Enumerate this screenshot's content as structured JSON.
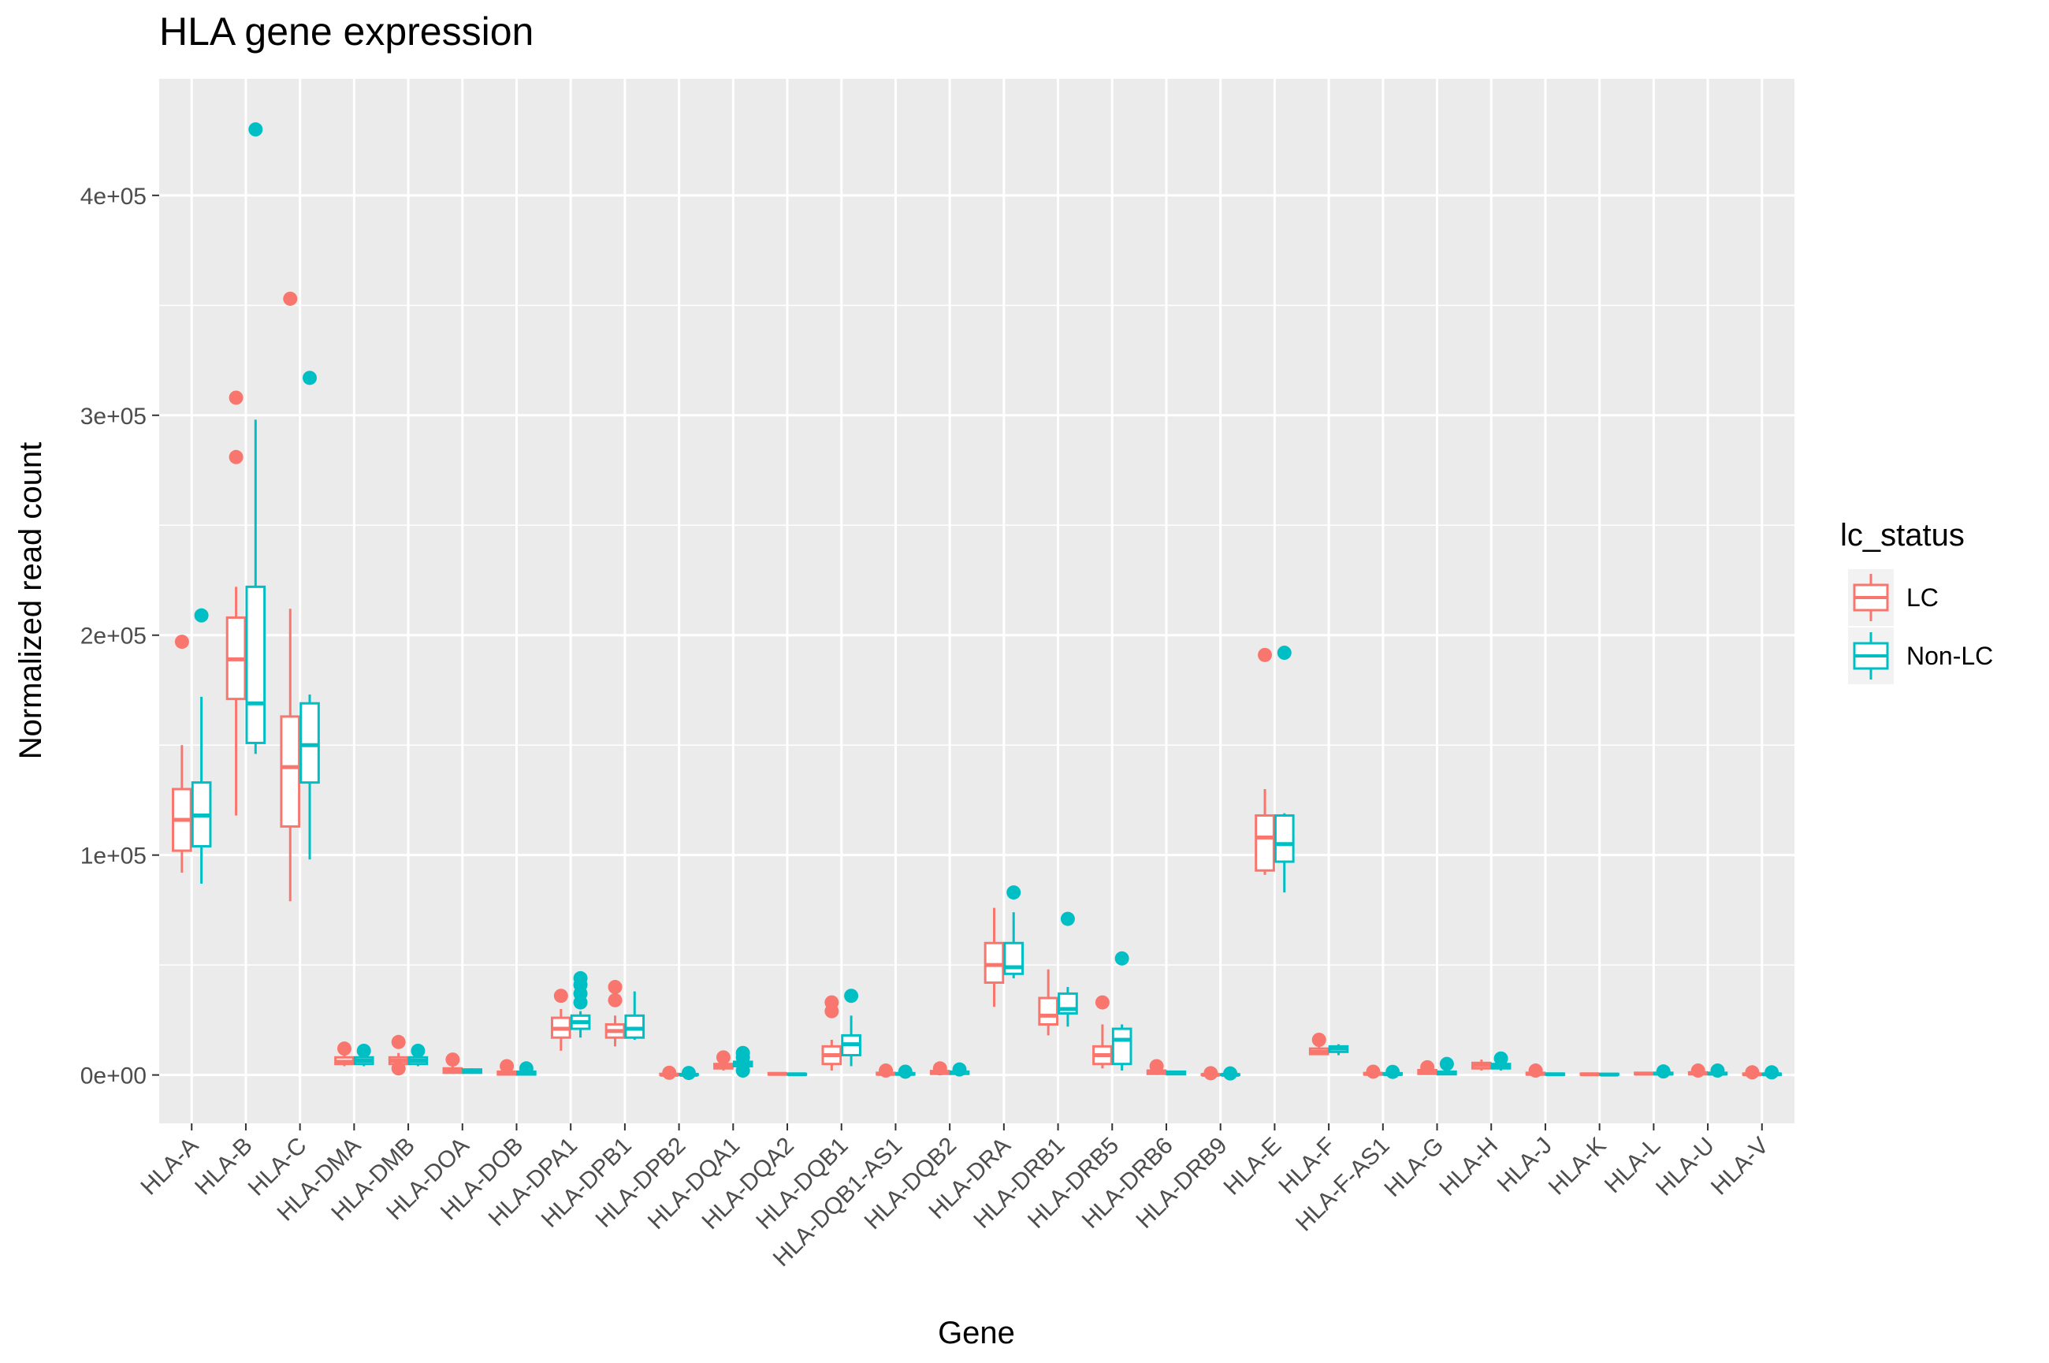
{
  "chart_data": {
    "type": "boxplot",
    "title": "HLA gene expression",
    "xlabel": "Gene",
    "ylabel": "Normalized read count",
    "ylim": [
      -22000,
      453000
    ],
    "y_ticks": [
      {
        "value": 0,
        "label": "0e+00"
      },
      {
        "value": 100000,
        "label": "1e+05"
      },
      {
        "value": 200000,
        "label": "2e+05"
      },
      {
        "value": 300000,
        "label": "3e+05"
      },
      {
        "value": 400000,
        "label": "4e+05"
      }
    ],
    "legend": {
      "title": "lc_status",
      "position": "right"
    },
    "series": [
      {
        "name": "LC",
        "color": "#F8766D"
      },
      {
        "name": "Non-LC",
        "color": "#00BFC4"
      }
    ],
    "grid": true,
    "categories": [
      "HLA-A",
      "HLA-B",
      "HLA-C",
      "HLA-DMA",
      "HLA-DMB",
      "HLA-DOA",
      "HLA-DOB",
      "HLA-DPA1",
      "HLA-DPB1",
      "HLA-DPB2",
      "HLA-DQA1",
      "HLA-DQA2",
      "HLA-DQB1",
      "HLA-DQB1-AS1",
      "HLA-DQB2",
      "HLA-DRA",
      "HLA-DRB1",
      "HLA-DRB5",
      "HLA-DRB6",
      "HLA-DRB9",
      "HLA-E",
      "HLA-F",
      "HLA-F-AS1",
      "HLA-G",
      "HLA-H",
      "HLA-J",
      "HLA-K",
      "HLA-L",
      "HLA-U",
      "HLA-V"
    ],
    "boxes": [
      {
        "gene": "HLA-A",
        "LC": {
          "min": 92000,
          "q1": 102000,
          "median": 116000,
          "q3": 130000,
          "max": 150000,
          "outliers": [
            197000
          ]
        },
        "Non-LC": {
          "min": 87000,
          "q1": 104000,
          "median": 118000,
          "q3": 133000,
          "max": 172000,
          "outliers": [
            209000
          ]
        }
      },
      {
        "gene": "HLA-B",
        "LC": {
          "min": 118000,
          "q1": 171000,
          "median": 189000,
          "q3": 208000,
          "max": 222000,
          "outliers": [
            281000,
            308000
          ]
        },
        "Non-LC": {
          "min": 146000,
          "q1": 151000,
          "median": 169000,
          "q3": 222000,
          "max": 298000,
          "outliers": [
            430000
          ]
        }
      },
      {
        "gene": "HLA-C",
        "LC": {
          "min": 79000,
          "q1": 113000,
          "median": 140000,
          "q3": 163000,
          "max": 212000,
          "outliers": [
            353000
          ]
        },
        "Non-LC": {
          "min": 98000,
          "q1": 133000,
          "median": 150000,
          "q3": 169000,
          "max": 173000,
          "outliers": [
            317000
          ]
        }
      },
      {
        "gene": "HLA-DMA",
        "LC": {
          "min": 4000,
          "q1": 5000,
          "median": 6000,
          "q3": 8000,
          "max": 9000,
          "outliers": [
            12000
          ]
        },
        "Non-LC": {
          "min": 4000,
          "q1": 5000,
          "median": 6500,
          "q3": 8000,
          "max": 9000,
          "outliers": [
            11000
          ]
        }
      },
      {
        "gene": "HLA-DMB",
        "LC": {
          "min": 4000,
          "q1": 5000,
          "median": 6500,
          "q3": 8000,
          "max": 10000,
          "outliers": [
            3000,
            15000
          ]
        },
        "Non-LC": {
          "min": 4000,
          "q1": 5000,
          "median": 6500,
          "q3": 8000,
          "max": 9000,
          "outliers": [
            11000
          ]
        }
      },
      {
        "gene": "HLA-DOA",
        "LC": {
          "min": 500,
          "q1": 1000,
          "median": 2000,
          "q3": 3000,
          "max": 4000,
          "outliers": [
            7000
          ]
        },
        "Non-LC": {
          "min": 500,
          "q1": 1000,
          "median": 2000,
          "q3": 2500,
          "max": 3000,
          "outliers": []
        }
      },
      {
        "gene": "HLA-DOB",
        "LC": {
          "min": 0,
          "q1": 200,
          "median": 800,
          "q3": 1500,
          "max": 2500,
          "outliers": [
            4000
          ]
        },
        "Non-LC": {
          "min": 0,
          "q1": 200,
          "median": 800,
          "q3": 1500,
          "max": 2000,
          "outliers": [
            3000
          ]
        }
      },
      {
        "gene": "HLA-DPA1",
        "LC": {
          "min": 11000,
          "q1": 17000,
          "median": 21000,
          "q3": 26000,
          "max": 30000,
          "outliers": [
            36000
          ]
        },
        "Non-LC": {
          "min": 17000,
          "q1": 21000,
          "median": 24000,
          "q3": 27000,
          "max": 29000,
          "outliers": [
            33000,
            37000,
            41000,
            44000
          ]
        }
      },
      {
        "gene": "HLA-DPB1",
        "LC": {
          "min": 13000,
          "q1": 17000,
          "median": 20000,
          "q3": 23000,
          "max": 27000,
          "outliers": [
            34000,
            40000
          ]
        },
        "Non-LC": {
          "min": 16000,
          "q1": 17000,
          "median": 21000,
          "q3": 27000,
          "max": 38000,
          "outliers": []
        }
      },
      {
        "gene": "HLA-DPB2",
        "LC": {
          "min": 0,
          "q1": 0,
          "median": 100,
          "q3": 500,
          "max": 800,
          "outliers": [
            1000
          ]
        },
        "Non-LC": {
          "min": 0,
          "q1": 0,
          "median": 100,
          "q3": 400,
          "max": 700,
          "outliers": [
            900
          ]
        }
      },
      {
        "gene": "HLA-DQA1",
        "LC": {
          "min": 2000,
          "q1": 3000,
          "median": 4000,
          "q3": 5000,
          "max": 6000,
          "outliers": [
            8000
          ]
        },
        "Non-LC": {
          "min": 3000,
          "q1": 4000,
          "median": 5000,
          "q3": 6000,
          "max": 7000,
          "outliers": [
            2000,
            8000,
            10000
          ]
        }
      },
      {
        "gene": "HLA-DQA2",
        "LC": {
          "min": 0,
          "q1": 200,
          "median": 500,
          "q3": 800,
          "max": 1000,
          "outliers": []
        },
        "Non-LC": {
          "min": 0,
          "q1": 100,
          "median": 300,
          "q3": 500,
          "max": 700,
          "outliers": []
        }
      },
      {
        "gene": "HLA-DQB1",
        "LC": {
          "min": 2000,
          "q1": 5000,
          "median": 9000,
          "q3": 13000,
          "max": 16000,
          "outliers": [
            29000,
            33000
          ]
        },
        "Non-LC": {
          "min": 4000,
          "q1": 9000,
          "median": 14000,
          "q3": 18000,
          "max": 27000,
          "outliers": [
            36000
          ]
        }
      },
      {
        "gene": "HLA-DQB1-AS1",
        "LC": {
          "min": 0,
          "q1": 200,
          "median": 500,
          "q3": 1000,
          "max": 1500,
          "outliers": [
            2000
          ]
        },
        "Non-LC": {
          "min": 0,
          "q1": 200,
          "median": 500,
          "q3": 800,
          "max": 1200,
          "outliers": [
            1500
          ]
        }
      },
      {
        "gene": "HLA-DQB2",
        "LC": {
          "min": 0,
          "q1": 500,
          "median": 1000,
          "q3": 1800,
          "max": 2200,
          "outliers": [
            3000
          ]
        },
        "Non-LC": {
          "min": 0,
          "q1": 500,
          "median": 1000,
          "q3": 1500,
          "max": 2000,
          "outliers": [
            2500
          ]
        }
      },
      {
        "gene": "HLA-DRA",
        "LC": {
          "min": 31000,
          "q1": 42000,
          "median": 50000,
          "q3": 60000,
          "max": 76000,
          "outliers": []
        },
        "Non-LC": {
          "min": 44000,
          "q1": 46000,
          "median": 49000,
          "q3": 60000,
          "max": 74000,
          "outliers": [
            83000
          ]
        }
      },
      {
        "gene": "HLA-DRB1",
        "LC": {
          "min": 18000,
          "q1": 23000,
          "median": 27000,
          "q3": 35000,
          "max": 48000,
          "outliers": []
        },
        "Non-LC": {
          "min": 22000,
          "q1": 28000,
          "median": 30000,
          "q3": 37000,
          "max": 40000,
          "outliers": [
            71000
          ]
        }
      },
      {
        "gene": "HLA-DRB5",
        "LC": {
          "min": 3000,
          "q1": 5000,
          "median": 9000,
          "q3": 13000,
          "max": 23000,
          "outliers": [
            33000
          ]
        },
        "Non-LC": {
          "min": 2000,
          "q1": 5000,
          "median": 16000,
          "q3": 21000,
          "max": 23000,
          "outliers": [
            53000
          ]
        }
      },
      {
        "gene": "HLA-DRB6",
        "LC": {
          "min": 0,
          "q1": 500,
          "median": 1000,
          "q3": 2000,
          "max": 2500,
          "outliers": [
            4000
          ]
        },
        "Non-LC": {
          "min": 0,
          "q1": 300,
          "median": 800,
          "q3": 1500,
          "max": 2000,
          "outliers": []
        }
      },
      {
        "gene": "HLA-DRB9",
        "LC": {
          "min": 0,
          "q1": 0,
          "median": 100,
          "q3": 300,
          "max": 500,
          "outliers": [
            800
          ]
        },
        "Non-LC": {
          "min": 0,
          "q1": 0,
          "median": 100,
          "q3": 300,
          "max": 500,
          "outliers": [
            700
          ]
        }
      },
      {
        "gene": "HLA-E",
        "LC": {
          "min": 91000,
          "q1": 93000,
          "median": 108000,
          "q3": 118000,
          "max": 130000,
          "outliers": [
            191000
          ]
        },
        "Non-LC": {
          "min": 83000,
          "q1": 97000,
          "median": 105000,
          "q3": 118000,
          "max": 119000,
          "outliers": [
            192000
          ]
        }
      },
      {
        "gene": "HLA-F",
        "LC": {
          "min": 9000,
          "q1": 9500,
          "median": 10500,
          "q3": 12000,
          "max": 13000,
          "outliers": [
            16000
          ]
        },
        "Non-LC": {
          "min": 9000,
          "q1": 10500,
          "median": 12000,
          "q3": 13000,
          "max": 14000,
          "outliers": []
        }
      },
      {
        "gene": "HLA-F-AS1",
        "LC": {
          "min": 0,
          "q1": 200,
          "median": 500,
          "q3": 900,
          "max": 1200,
          "outliers": [
            1500
          ]
        },
        "Non-LC": {
          "min": 0,
          "q1": 200,
          "median": 400,
          "q3": 800,
          "max": 1100,
          "outliers": [
            1400
          ]
        }
      },
      {
        "gene": "HLA-G",
        "LC": {
          "min": 0,
          "q1": 500,
          "median": 1200,
          "q3": 2200,
          "max": 2800,
          "outliers": [
            3500
          ]
        },
        "Non-LC": {
          "min": 0,
          "q1": 300,
          "median": 800,
          "q3": 1500,
          "max": 2500,
          "outliers": [
            5000
          ]
        }
      },
      {
        "gene": "HLA-H",
        "LC": {
          "min": 2000,
          "q1": 3000,
          "median": 4500,
          "q3": 5500,
          "max": 7000,
          "outliers": []
        },
        "Non-LC": {
          "min": 2000,
          "q1": 3000,
          "median": 4000,
          "q3": 5000,
          "max": 6000,
          "outliers": [
            7500
          ]
        }
      },
      {
        "gene": "HLA-J",
        "LC": {
          "min": 0,
          "q1": 200,
          "median": 500,
          "q3": 1000,
          "max": 1500,
          "outliers": [
            2000
          ]
        },
        "Non-LC": {
          "min": 0,
          "q1": 100,
          "median": 300,
          "q3": 600,
          "max": 900,
          "outliers": []
        }
      },
      {
        "gene": "HLA-K",
        "LC": {
          "min": 0,
          "q1": 100,
          "median": 300,
          "q3": 600,
          "max": 900,
          "outliers": []
        },
        "Non-LC": {
          "min": 0,
          "q1": 100,
          "median": 200,
          "q3": 500,
          "max": 700,
          "outliers": []
        }
      },
      {
        "gene": "HLA-L",
        "LC": {
          "min": 0,
          "q1": 300,
          "median": 600,
          "q3": 1000,
          "max": 1200,
          "outliers": []
        },
        "Non-LC": {
          "min": 0,
          "q1": 300,
          "median": 600,
          "q3": 1000,
          "max": 1300,
          "outliers": [
            1600
          ]
        }
      },
      {
        "gene": "HLA-U",
        "LC": {
          "min": 0,
          "q1": 300,
          "median": 700,
          "q3": 1200,
          "max": 1600,
          "outliers": [
            2000
          ]
        },
        "Non-LC": {
          "min": 0,
          "q1": 300,
          "median": 600,
          "q3": 1000,
          "max": 1500,
          "outliers": [
            2000
          ]
        }
      },
      {
        "gene": "HLA-V",
        "LC": {
          "min": 0,
          "q1": 100,
          "median": 300,
          "q3": 600,
          "max": 900,
          "outliers": [
            1200
          ]
        },
        "Non-LC": {
          "min": 0,
          "q1": 100,
          "median": 300,
          "q3": 600,
          "max": 900,
          "outliers": [
            1200
          ]
        }
      }
    ]
  }
}
